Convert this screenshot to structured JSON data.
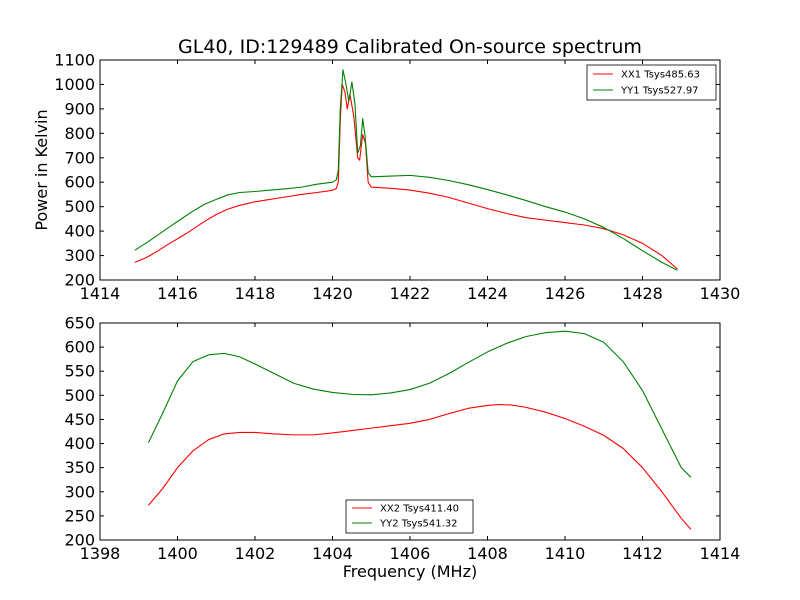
{
  "figure": {
    "title": "GL40, ID:129489 Calibrated On-source spectrum",
    "xlabel": "Frequency (MHz)"
  },
  "chart_data": [
    {
      "type": "line",
      "ylabel": "Power in Kelvin",
      "xlim": [
        1414,
        1430
      ],
      "ylim": [
        200,
        1100
      ],
      "xticks": [
        1414,
        1416,
        1418,
        1420,
        1422,
        1424,
        1426,
        1428,
        1430
      ],
      "yticks": [
        200,
        300,
        400,
        500,
        600,
        700,
        800,
        900,
        1000,
        1100
      ],
      "legend_position": "top-right",
      "series": [
        {
          "name": "XX1 Tsys485.63",
          "color": "#ff0000",
          "points": [
            [
              1414.9,
              272
            ],
            [
              1415.2,
              292
            ],
            [
              1415.5,
              320
            ],
            [
              1415.8,
              350
            ],
            [
              1416.1,
              378
            ],
            [
              1416.4,
              408
            ],
            [
              1416.7,
              440
            ],
            [
              1417.0,
              468
            ],
            [
              1417.3,
              490
            ],
            [
              1417.6,
              505
            ],
            [
              1418.0,
              520
            ],
            [
              1418.4,
              530
            ],
            [
              1418.8,
              540
            ],
            [
              1419.2,
              550
            ],
            [
              1419.6,
              558
            ],
            [
              1420.0,
              567
            ],
            [
              1420.1,
              575
            ],
            [
              1420.15,
              600
            ],
            [
              1420.2,
              850
            ],
            [
              1420.25,
              1000
            ],
            [
              1420.32,
              970
            ],
            [
              1420.38,
              900
            ],
            [
              1420.45,
              960
            ],
            [
              1420.55,
              870
            ],
            [
              1420.65,
              700
            ],
            [
              1420.7,
              690
            ],
            [
              1420.78,
              795
            ],
            [
              1420.85,
              760
            ],
            [
              1420.92,
              600
            ],
            [
              1421.0,
              580
            ],
            [
              1421.5,
              575
            ],
            [
              1422.0,
              568
            ],
            [
              1422.5,
              555
            ],
            [
              1423.0,
              538
            ],
            [
              1423.5,
              515
            ],
            [
              1424.0,
              492
            ],
            [
              1424.5,
              472
            ],
            [
              1425.0,
              455
            ],
            [
              1425.5,
              445
            ],
            [
              1426.0,
              435
            ],
            [
              1426.5,
              425
            ],
            [
              1427.0,
              410
            ],
            [
              1427.5,
              385
            ],
            [
              1428.0,
              350
            ],
            [
              1428.5,
              300
            ],
            [
              1428.9,
              245
            ]
          ]
        },
        {
          "name": "YY1 Tsys527.97",
          "color": "#008000",
          "points": [
            [
              1414.9,
              322
            ],
            [
              1415.2,
              352
            ],
            [
              1415.5,
              385
            ],
            [
              1415.8,
              418
            ],
            [
              1416.1,
              450
            ],
            [
              1416.4,
              482
            ],
            [
              1416.7,
              510
            ],
            [
              1417.0,
              530
            ],
            [
              1417.3,
              548
            ],
            [
              1417.6,
              558
            ],
            [
              1418.0,
              562
            ],
            [
              1418.4,
              568
            ],
            [
              1418.8,
              573
            ],
            [
              1419.2,
              580
            ],
            [
              1419.6,
              592
            ],
            [
              1420.0,
              600
            ],
            [
              1420.1,
              610
            ],
            [
              1420.15,
              650
            ],
            [
              1420.2,
              900
            ],
            [
              1420.27,
              1060
            ],
            [
              1420.35,
              1000
            ],
            [
              1420.42,
              930
            ],
            [
              1420.5,
              1010
            ],
            [
              1420.58,
              920
            ],
            [
              1420.65,
              720
            ],
            [
              1420.72,
              750
            ],
            [
              1420.78,
              860
            ],
            [
              1420.84,
              790
            ],
            [
              1420.92,
              640
            ],
            [
              1421.0,
              622
            ],
            [
              1421.5,
              625
            ],
            [
              1422.0,
              628
            ],
            [
              1422.5,
              620
            ],
            [
              1423.0,
              607
            ],
            [
              1423.5,
              590
            ],
            [
              1424.0,
              570
            ],
            [
              1424.5,
              548
            ],
            [
              1425.0,
              525
            ],
            [
              1425.5,
              500
            ],
            [
              1426.0,
              478
            ],
            [
              1426.5,
              450
            ],
            [
              1427.0,
              415
            ],
            [
              1427.5,
              370
            ],
            [
              1428.0,
              320
            ],
            [
              1428.5,
              272
            ],
            [
              1428.9,
              240
            ]
          ]
        }
      ]
    },
    {
      "type": "line",
      "xlabel": "Frequency (MHz)",
      "xlim": [
        1398,
        1414
      ],
      "ylim": [
        200,
        650
      ],
      "xticks": [
        1398,
        1400,
        1402,
        1404,
        1406,
        1408,
        1410,
        1412,
        1414
      ],
      "yticks": [
        200,
        250,
        300,
        350,
        400,
        450,
        500,
        550,
        600,
        650
      ],
      "legend_position": "bottom-center",
      "series": [
        {
          "name": "XX2 Tsys411.40",
          "color": "#ff0000",
          "points": [
            [
              1399.25,
              272
            ],
            [
              1399.6,
              305
            ],
            [
              1400.0,
              350
            ],
            [
              1400.4,
              385
            ],
            [
              1400.8,
              408
            ],
            [
              1401.2,
              420
            ],
            [
              1401.6,
              423
            ],
            [
              1402.0,
              423
            ],
            [
              1402.5,
              420
            ],
            [
              1403.0,
              418
            ],
            [
              1403.5,
              418
            ],
            [
              1404.0,
              422
            ],
            [
              1404.5,
              427
            ],
            [
              1405.0,
              432
            ],
            [
              1405.5,
              437
            ],
            [
              1406.0,
              442
            ],
            [
              1406.5,
              450
            ],
            [
              1407.0,
              462
            ],
            [
              1407.5,
              473
            ],
            [
              1408.0,
              479
            ],
            [
              1408.3,
              481
            ],
            [
              1408.6,
              480
            ],
            [
              1409.0,
              475
            ],
            [
              1409.5,
              465
            ],
            [
              1410.0,
              452
            ],
            [
              1410.5,
              436
            ],
            [
              1411.0,
              417
            ],
            [
              1411.5,
              390
            ],
            [
              1412.0,
              350
            ],
            [
              1412.5,
              300
            ],
            [
              1413.0,
              245
            ],
            [
              1413.25,
              222
            ]
          ]
        },
        {
          "name": "YY2 Tsys541.32",
          "color": "#008000",
          "points": [
            [
              1399.25,
              402
            ],
            [
              1399.6,
              460
            ],
            [
              1400.0,
              530
            ],
            [
              1400.4,
              570
            ],
            [
              1400.8,
              584
            ],
            [
              1401.2,
              587
            ],
            [
              1401.6,
              580
            ],
            [
              1402.0,
              565
            ],
            [
              1402.5,
              545
            ],
            [
              1403.0,
              525
            ],
            [
              1403.5,
              513
            ],
            [
              1404.0,
              506
            ],
            [
              1404.5,
              502
            ],
            [
              1405.0,
              501
            ],
            [
              1405.5,
              505
            ],
            [
              1406.0,
              512
            ],
            [
              1406.5,
              525
            ],
            [
              1407.0,
              545
            ],
            [
              1407.5,
              568
            ],
            [
              1408.0,
              590
            ],
            [
              1408.5,
              608
            ],
            [
              1409.0,
              622
            ],
            [
              1409.5,
              630
            ],
            [
              1410.0,
              633
            ],
            [
              1410.5,
              628
            ],
            [
              1411.0,
              610
            ],
            [
              1411.5,
              570
            ],
            [
              1412.0,
              510
            ],
            [
              1412.5,
              430
            ],
            [
              1413.0,
              350
            ],
            [
              1413.25,
              330
            ]
          ]
        }
      ]
    }
  ]
}
